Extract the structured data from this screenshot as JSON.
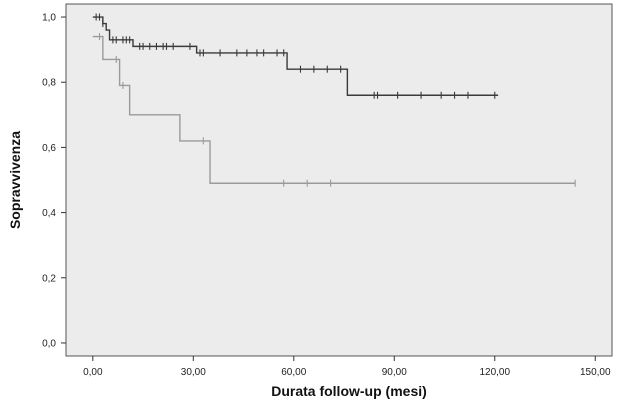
{
  "chart_data": {
    "type": "line",
    "subtype": "kaplan-meier-survival",
    "xlabel": "Durata follow-up (mesi)",
    "ylabel": "Sopravvivenza",
    "xlim": [
      -8,
      155
    ],
    "ylim": [
      -0.04,
      1.04
    ],
    "x_ticks": [
      0,
      30,
      60,
      90,
      120,
      150
    ],
    "x_tick_labels": [
      "0,00",
      "30,00",
      "60,00",
      "90,00",
      "120,00",
      "150,00"
    ],
    "y_ticks": [
      0,
      0.2,
      0.4,
      0.6,
      0.8,
      1.0
    ],
    "y_tick_labels": [
      "0,0",
      "0,2",
      "0,4",
      "0,6",
      "0,8",
      "1,0"
    ],
    "grid": false,
    "plot_background": "#ececec",
    "series": [
      {
        "color": "#3a3a3a",
        "steps": [
          [
            0,
            1.0
          ],
          [
            3,
            0.98
          ],
          [
            4,
            0.96
          ],
          [
            5,
            0.93
          ],
          [
            12,
            0.91
          ],
          [
            31,
            0.89
          ],
          [
            58,
            0.84
          ],
          [
            76,
            0.76
          ],
          [
            121,
            0.76
          ]
        ],
        "censored_x": [
          1,
          2,
          3,
          6,
          7,
          9,
          10,
          11,
          14,
          15,
          17,
          19,
          21,
          22,
          24,
          29,
          32,
          33,
          38,
          43,
          46,
          49,
          51,
          55,
          57,
          62,
          66,
          70,
          74,
          84,
          85,
          91,
          98,
          104,
          108,
          112,
          120
        ]
      },
      {
        "color": "#9a9a9a",
        "steps": [
          [
            0,
            0.94
          ],
          [
            3,
            0.87
          ],
          [
            8,
            0.79
          ],
          [
            11,
            0.7
          ],
          [
            26,
            0.62
          ],
          [
            35,
            0.49
          ],
          [
            144,
            0.49
          ]
        ],
        "censored_x": [
          2,
          7,
          9,
          33,
          57,
          64,
          71,
          144
        ]
      }
    ]
  }
}
